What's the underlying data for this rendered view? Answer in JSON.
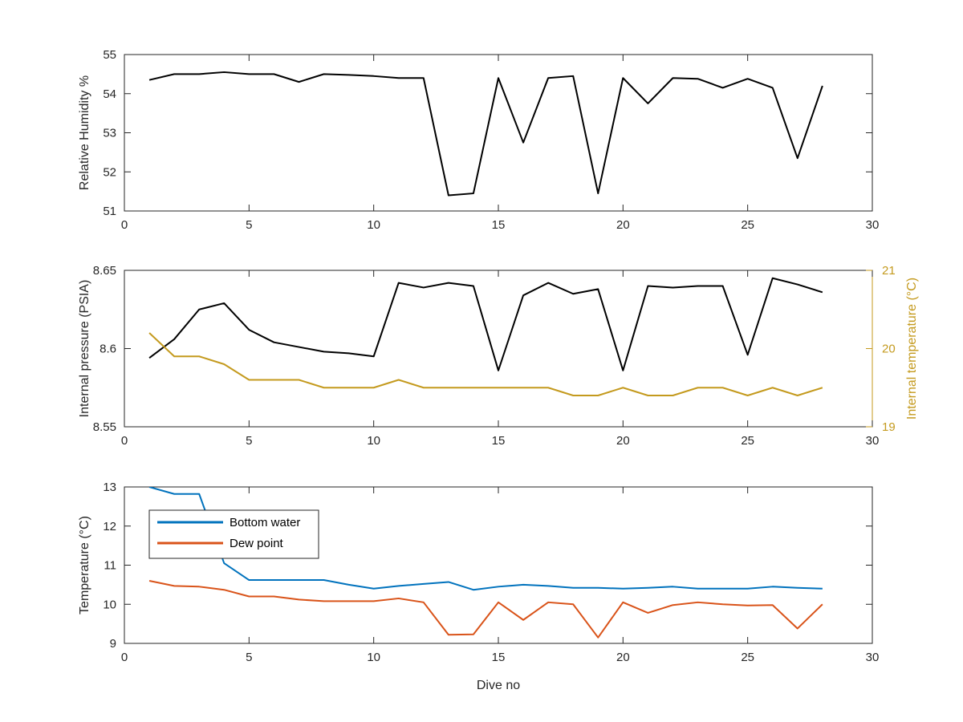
{
  "figure": {
    "background": "#ffffff",
    "axis_color": "#262626"
  },
  "chart_data": [
    {
      "type": "line",
      "xlabel": "",
      "ylabel": "Relative Humidity %",
      "xlim": [
        0,
        30
      ],
      "ylim": [
        51,
        55
      ],
      "xticks": [
        0,
        5,
        10,
        15,
        20,
        25,
        30
      ],
      "yticks": [
        51,
        52,
        53,
        54,
        55
      ],
      "x": [
        1,
        2,
        3,
        4,
        5,
        6,
        7,
        8,
        9,
        10,
        11,
        12,
        13,
        14,
        15,
        16,
        17,
        18,
        19,
        20,
        21,
        22,
        23,
        24,
        25,
        26,
        27,
        28
      ],
      "series": [
        {
          "color": "#000000",
          "values": [
            54.35,
            54.5,
            54.5,
            54.55,
            54.5,
            54.5,
            54.3,
            54.5,
            54.48,
            54.45,
            54.4,
            54.4,
            51.4,
            51.45,
            54.4,
            52.75,
            54.4,
            54.45,
            51.45,
            54.4,
            53.75,
            54.4,
            54.38,
            54.15,
            54.38,
            54.15,
            52.35,
            54.2
          ]
        }
      ]
    },
    {
      "type": "line",
      "xlabel": "",
      "ylabel": "Internal pressure (PSIA)",
      "y2label": "Internal temperature (°C)",
      "xlim": [
        0,
        30
      ],
      "ylim": [
        8.55,
        8.65
      ],
      "y2lim": [
        19,
        21
      ],
      "xticks": [
        0,
        5,
        10,
        15,
        20,
        25,
        30
      ],
      "yticks": [
        "8.55",
        "8.6",
        "8.65"
      ],
      "y2ticks": [
        "19",
        "20",
        "21"
      ],
      "x": [
        1,
        2,
        3,
        4,
        5,
        6,
        7,
        8,
        9,
        10,
        11,
        12,
        13,
        14,
        15,
        16,
        17,
        18,
        19,
        20,
        21,
        22,
        23,
        24,
        25,
        26,
        27,
        28
      ],
      "series": [
        {
          "axis": "left",
          "color": "#000000",
          "values": [
            8.594,
            8.606,
            8.625,
            8.629,
            8.612,
            8.604,
            8.601,
            8.598,
            8.597,
            8.595,
            8.642,
            8.639,
            8.642,
            8.64,
            8.586,
            8.634,
            8.642,
            8.635,
            8.638,
            8.586,
            8.64,
            8.639,
            8.64,
            8.64,
            8.596,
            8.645,
            8.641,
            8.636
          ]
        },
        {
          "axis": "right",
          "color": "#c49a1e",
          "values": [
            20.2,
            19.9,
            19.9,
            19.8,
            19.6,
            19.6,
            19.6,
            19.5,
            19.5,
            19.5,
            19.6,
            19.5,
            19.5,
            19.5,
            19.5,
            19.5,
            19.5,
            19.4,
            19.4,
            19.5,
            19.4,
            19.4,
            19.5,
            19.5,
            19.4,
            19.5,
            19.4,
            19.5
          ]
        }
      ]
    },
    {
      "type": "line",
      "xlabel": "Dive no",
      "ylabel": "Temperature (°C)",
      "xlim": [
        0,
        30
      ],
      "ylim": [
        9,
        13
      ],
      "xticks": [
        0,
        5,
        10,
        15,
        20,
        25,
        30
      ],
      "yticks": [
        9,
        10,
        11,
        12,
        13
      ],
      "legend_position": "top-left",
      "x": [
        1,
        2,
        3,
        4,
        5,
        6,
        7,
        8,
        9,
        10,
        11,
        12,
        13,
        14,
        15,
        16,
        17,
        18,
        19,
        20,
        21,
        22,
        23,
        24,
        25,
        26,
        27,
        28
      ],
      "series": [
        {
          "name": "Bottom water",
          "color": "#0072bd",
          "values": [
            13.0,
            12.82,
            12.82,
            11.05,
            10.62,
            10.62,
            10.62,
            10.62,
            10.5,
            10.4,
            10.47,
            10.52,
            10.57,
            10.37,
            10.45,
            10.5,
            10.47,
            10.42,
            10.42,
            10.4,
            10.42,
            10.45,
            10.4,
            10.4,
            10.4,
            10.45,
            10.42,
            10.4
          ]
        },
        {
          "name": "Dew point",
          "color": "#d95319",
          "values": [
            10.6,
            10.47,
            10.45,
            10.37,
            10.2,
            10.2,
            10.12,
            10.08,
            10.08,
            10.08,
            10.15,
            10.05,
            9.22,
            9.23,
            10.05,
            9.6,
            10.05,
            10.0,
            9.15,
            10.05,
            9.78,
            9.98,
            10.05,
            10.0,
            9.97,
            9.98,
            9.38,
            10.0
          ]
        }
      ]
    }
  ]
}
